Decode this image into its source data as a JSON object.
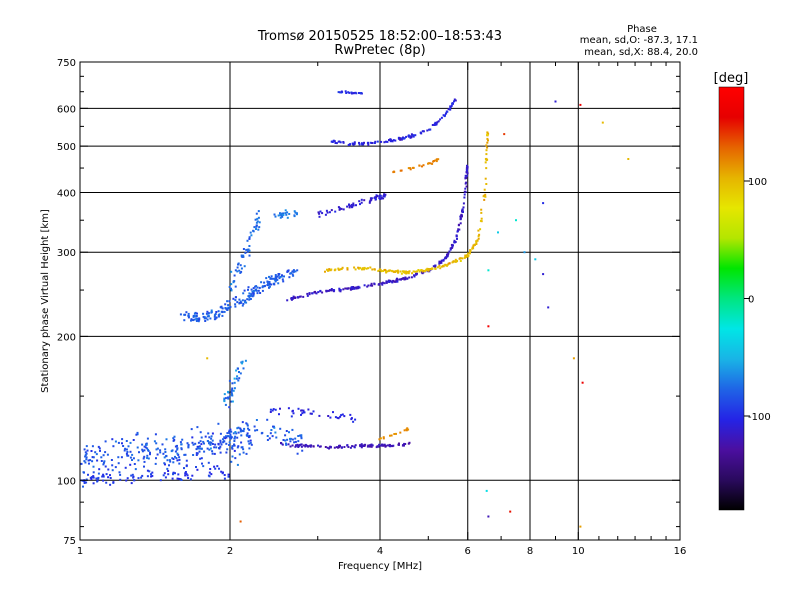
{
  "chart_data": {
    "type": "scatter",
    "title": "Tromsø 20150525 18:52:00–18:53:43",
    "subtitle": "RwPretec (8p)",
    "xlabel": "Frequency [MHz]",
    "ylabel": "Stationary phase Virtual Height [km]",
    "x_scale": "log",
    "y_scale": "log",
    "xlim": [
      1,
      16
    ],
    "ylim": [
      75,
      750
    ],
    "x_ticks": [
      1,
      2,
      4,
      6,
      8,
      10,
      16
    ],
    "x_tick_labels": [
      "1",
      "2",
      "4",
      "6",
      "8",
      "10",
      "16"
    ],
    "x_minor_ticks": [
      3,
      5,
      7,
      9,
      11,
      12,
      13,
      14,
      15
    ],
    "y_ticks": [
      75,
      100,
      200,
      300,
      400,
      500,
      600,
      750
    ],
    "y_tick_labels": [
      "75",
      "100",
      "200",
      "300",
      "400",
      "500",
      "600",
      "750"
    ],
    "y_minor_ticks": [
      80,
      90,
      150,
      250,
      350,
      450,
      550,
      650,
      700
    ],
    "x_gridlines": [
      2,
      4,
      6,
      8,
      10
    ],
    "y_gridlines": [
      100,
      200,
      300,
      400,
      500,
      600
    ],
    "grid": true,
    "phase_header": "Phase",
    "phase_stats": [
      "mean, sd,O: -87.3, 17.1",
      "mean, sd,X:  88.4, 20.0"
    ],
    "colorbar": {
      "label": "[deg]",
      "range": [
        -180,
        180
      ],
      "tick_values": [
        100,
        0,
        -100
      ],
      "tick_labels": [
        "100",
        "0",
        "-100"
      ],
      "colors": [
        "#000000",
        "#2a0a5e",
        "#4b0fa0",
        "#2424e6",
        "#1f64e6",
        "#19b4e6",
        "#00e6e6",
        "#00e680",
        "#00e600",
        "#b4e600",
        "#e6e600",
        "#e6b400",
        "#e66400",
        "#e60000",
        "#ff0000"
      ]
    },
    "series": [
      {
        "segments": [
          {
            "type": "band",
            "x": [
              1.0,
              1.1,
              1.25,
              1.4,
              1.6,
              1.8,
              2.0,
              2.2
            ],
            "y": [
              110,
              112,
              114,
              116,
              117,
              118,
              120,
              122
            ],
            "spread": 18,
            "count": 260,
            "phase": -85,
            "phase_spread": 25
          },
          {
            "type": "band",
            "x": [
              1.0,
              1.2,
              1.4,
              1.7,
              2.0
            ],
            "y": [
              100,
              101,
              102,
              103,
              104
            ],
            "spread": 5,
            "count": 90,
            "phase": -95,
            "phase_spread": 20
          },
          {
            "type": "band",
            "x": [
              1.45,
              1.7,
              1.9,
              2.05,
              2.2,
              2.4,
              2.6,
              2.8
            ],
            "y": [
              112,
              115,
              120,
              125,
              130,
              128,
              124,
              120
            ],
            "spread": 10,
            "count": 120,
            "phase": -80,
            "phase_spread": 25
          },
          {
            "type": "band",
            "x": [
              1.95,
              2.05,
              2.15
            ],
            "y": [
              140,
              160,
              180
            ],
            "spread": 14,
            "count": 40,
            "phase": -70,
            "phase_spread": 30
          },
          {
            "type": "band",
            "x": [
              2.4,
              2.8,
              3.2,
              3.6
            ],
            "y": [
              140,
              138,
              136,
              135
            ],
            "spread": 6,
            "count": 40,
            "phase": -105,
            "phase_spread": 20
          },
          {
            "type": "curve",
            "x": [
              2.5,
              2.8,
              3.1,
              3.4,
              3.7,
              4.0,
              4.3,
              4.6
            ],
            "y": [
              119,
              118,
              117.5,
              117.5,
              118,
              118,
              118.5,
              119
            ],
            "spread": 1.5,
            "count": 110,
            "phase": -120,
            "phase_spread": 15
          },
          {
            "type": "curve",
            "x": [
              4.0,
              4.3,
              4.55
            ],
            "y": [
              122,
              125,
              128
            ],
            "spread": 1.5,
            "count": 15,
            "phase": 115,
            "phase_spread": 10
          },
          {
            "type": "band",
            "x": [
              1.6,
              1.75,
              1.9,
              2.05,
              2.2,
              2.35,
              2.5,
              2.7
            ],
            "y": [
              220,
              220,
              225,
              235,
              245,
              255,
              265,
              275
            ],
            "spread": 12,
            "count": 200,
            "phase": -80,
            "phase_spread": 20
          },
          {
            "type": "band",
            "x": [
              2.0,
              2.1,
              2.2,
              2.3
            ],
            "y": [
              250,
              280,
              320,
              360
            ],
            "spread": 25,
            "count": 60,
            "phase": -75,
            "phase_spread": 25
          },
          {
            "type": "band",
            "x": [
              2.4,
              2.6,
              2.75
            ],
            "y": [
              355,
              360,
              365
            ],
            "spread": 10,
            "count": 25,
            "phase": -70,
            "phase_spread": 20
          },
          {
            "type": "curve",
            "x": [
              2.6,
              3.0,
              3.5,
              4.0,
              4.5,
              5.0,
              5.4,
              5.7,
              5.9,
              6.0
            ],
            "y": [
              238,
              248,
              252,
              258,
              264,
              275,
              290,
              320,
              380,
              460
            ],
            "spread": 3,
            "count": 240,
            "phase": -115,
            "phase_spread": 20
          },
          {
            "type": "curve",
            "x": [
              3.1,
              3.6,
              4.0,
              4.5,
              5.0,
              5.5,
              6.0,
              6.3,
              6.5,
              6.6
            ],
            "y": [
              275,
              278,
              275,
              272,
              275,
              283,
              295,
              320,
              400,
              560
            ],
            "spread": 3,
            "count": 200,
            "phase": 100,
            "phase_spread": 20
          },
          {
            "type": "curve",
            "x": [
              3.0,
              3.4,
              3.8,
              4.1
            ],
            "y": [
              360,
              372,
              385,
              395
            ],
            "spread": 8,
            "count": 60,
            "phase": -110,
            "phase_spread": 20
          },
          {
            "type": "curve",
            "x": [
              4.2,
              4.6,
              5.0,
              5.3
            ],
            "y": [
              440,
              450,
              460,
              470
            ],
            "spread": 6,
            "count": 25,
            "phase": 120,
            "phase_spread": 10
          },
          {
            "type": "curve",
            "x": [
              3.2,
              3.6,
              4.0,
              4.5,
              5.0,
              5.4,
              5.7
            ],
            "y": [
              510,
              505,
              510,
              520,
              540,
              580,
              630
            ],
            "spread": 6,
            "count": 120,
            "phase": -105,
            "phase_spread": 20
          },
          {
            "type": "band",
            "x": [
              3.3,
              3.5,
              3.7
            ],
            "y": [
              650,
              648,
              645
            ],
            "spread": 6,
            "count": 20,
            "phase": -100,
            "phase_spread": 15
          }
        ]
      }
    ],
    "sparse_points": [
      {
        "x": 1.8,
        "y": 180,
        "phase": 100
      },
      {
        "x": 2.1,
        "y": 82,
        "phase": 130
      },
      {
        "x": 6.55,
        "y": 95,
        "phase": -30
      },
      {
        "x": 6.6,
        "y": 210,
        "phase": 170
      },
      {
        "x": 6.6,
        "y": 275,
        "phase": -20
      },
      {
        "x": 6.6,
        "y": 84,
        "phase": -120
      },
      {
        "x": 7.3,
        "y": 86,
        "phase": 150
      },
      {
        "x": 7.8,
        "y": 300,
        "phase": -60
      },
      {
        "x": 7.5,
        "y": 350,
        "phase": -20
      },
      {
        "x": 8.2,
        "y": 290,
        "phase": -40
      },
      {
        "x": 8.5,
        "y": 270,
        "phase": -110
      },
      {
        "x": 8.7,
        "y": 230,
        "phase": -110
      },
      {
        "x": 9.0,
        "y": 620,
        "phase": -110
      },
      {
        "x": 9.8,
        "y": 180,
        "phase": 110
      },
      {
        "x": 10.1,
        "y": 610,
        "phase": 160
      },
      {
        "x": 10.2,
        "y": 160,
        "phase": 160
      },
      {
        "x": 10.1,
        "y": 80,
        "phase": 110
      },
      {
        "x": 11.2,
        "y": 560,
        "phase": 100
      },
      {
        "x": 12.6,
        "y": 470,
        "phase": 100
      },
      {
        "x": 8.5,
        "y": 380,
        "phase": -100
      },
      {
        "x": 7.1,
        "y": 530,
        "phase": 140
      },
      {
        "x": 6.9,
        "y": 330,
        "phase": -40
      }
    ]
  }
}
